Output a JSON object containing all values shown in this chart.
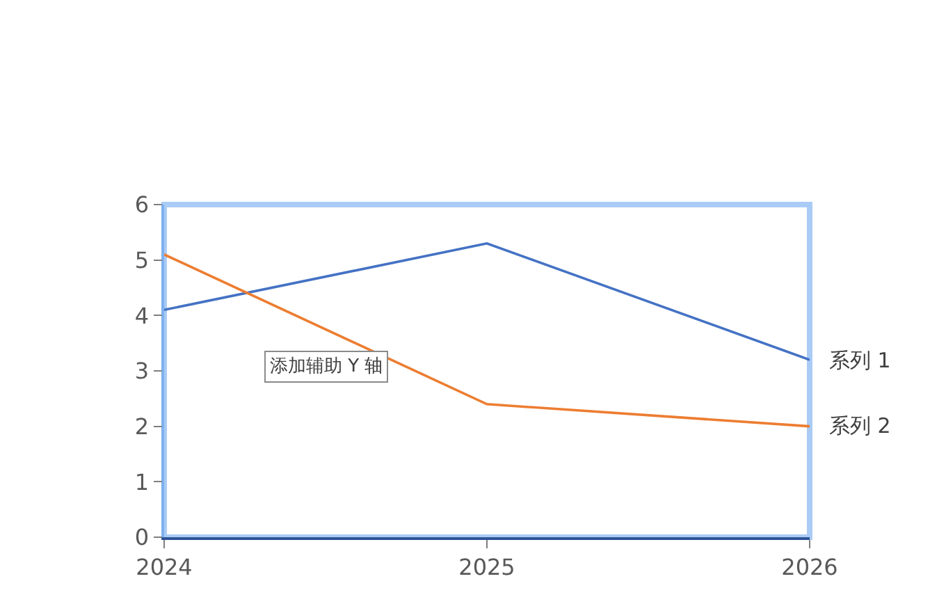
{
  "chart_data": {
    "type": "line",
    "x": [
      2024,
      2025,
      2026
    ],
    "series": [
      {
        "name": "系列 1",
        "color": "#4472c4",
        "values": [
          4.1,
          5.3,
          3.2
        ]
      },
      {
        "name": "系列 2",
        "color": "#ed7d31",
        "values": [
          5.1,
          2.4,
          2.0
        ]
      }
    ],
    "xlim": [
      2024,
      2026
    ],
    "xticks": [
      2024,
      2025,
      2026
    ],
    "ylim": [
      0,
      6
    ],
    "yticks": [
      0,
      1,
      2,
      3,
      4,
      5,
      6
    ],
    "grid": false,
    "legend": false,
    "marker": "none",
    "line_style": "solid",
    "annotations": [
      "添加辅助 Y 轴"
    ]
  }
}
